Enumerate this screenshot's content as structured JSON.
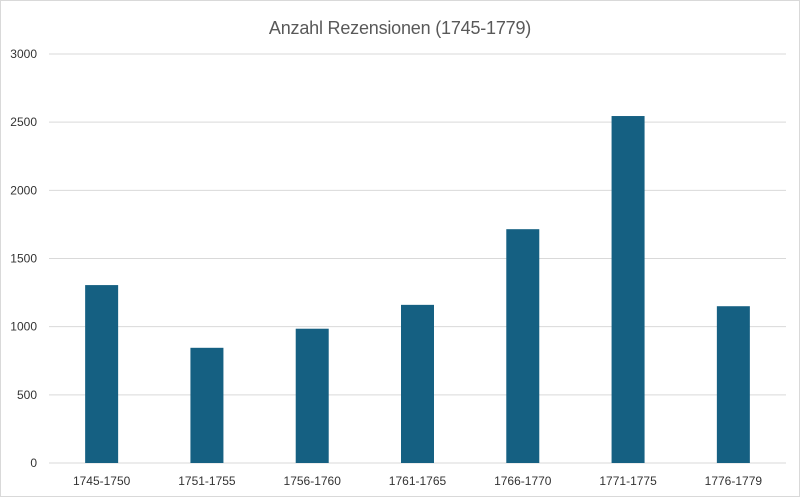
{
  "chart_data": {
    "type": "bar",
    "title": "Anzahl Rezensionen (1745-1779)",
    "xlabel": "",
    "ylabel": "",
    "categories": [
      "1745-1750",
      "1751-1755",
      "1756-1760",
      "1761-1765",
      "1766-1770",
      "1771-1775",
      "1776-1779"
    ],
    "series": [
      {
        "values": [
          1305,
          845,
          985,
          1160,
          1715,
          2545,
          1150
        ]
      }
    ],
    "ylim": [
      0,
      3000
    ],
    "yticks": [
      0,
      500,
      1000,
      1500,
      2000,
      2500,
      3000
    ],
    "grid": true,
    "legend": "none",
    "colors": {
      "bar": "#156082",
      "grid": "#d9d9d9",
      "title": "#595959",
      "tick": "#333333"
    }
  }
}
